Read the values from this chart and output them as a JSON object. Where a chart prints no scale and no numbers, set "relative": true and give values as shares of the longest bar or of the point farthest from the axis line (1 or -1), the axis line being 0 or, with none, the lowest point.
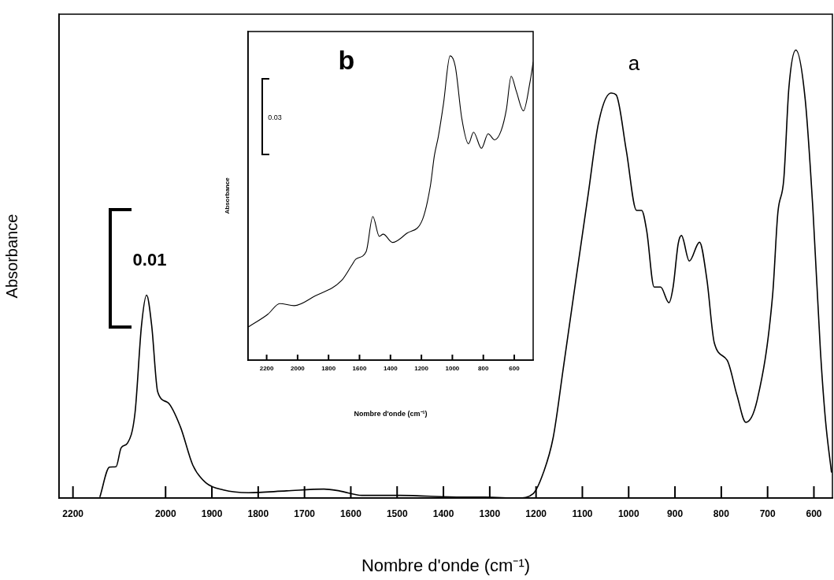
{
  "chart_data": [
    {
      "type": "line",
      "xlabel": "Nombre d'onde (cm⁻¹)",
      "ylabel": "Absorbance",
      "relative": true,
      "color": "#000000",
      "annotations": [
        "0.01",
        "a"
      ],
      "xlim": [
        2230,
        560
      ],
      "xticks": [
        2200,
        2000,
        1900,
        1800,
        1700,
        1600,
        1500,
        1400,
        1300,
        1200,
        1100,
        1000,
        900,
        800,
        700,
        600
      ],
      "x": [
        2142,
        2121,
        2107,
        2096,
        2082,
        2066,
        2052,
        2041,
        2030,
        2017,
        1995,
        1968,
        1941,
        1913,
        1875,
        1821,
        1739,
        1658,
        1625,
        1576,
        1495,
        1359,
        1310,
        1239,
        1206,
        1184,
        1163,
        1141,
        1114,
        1087,
        1065,
        1038,
        1027,
        1005,
        983,
        972,
        961,
        945,
        931,
        913,
        904,
        893,
        886,
        869,
        847,
        831,
        815,
        787,
        766,
        747,
        722,
        689,
        678,
        665,
        654,
        639,
        619,
        602,
        586,
        575,
        562
      ],
      "values": [
        0.002,
        0.069,
        0.07,
        0.112,
        0.123,
        0.19,
        0.385,
        0.453,
        0.385,
        0.237,
        0.213,
        0.159,
        0.073,
        0.034,
        0.018,
        0.012,
        0.016,
        0.02,
        0.016,
        0.006,
        0.006,
        0.002,
        0.002,
        0,
        0.01,
        0.057,
        0.135,
        0.291,
        0.487,
        0.681,
        0.838,
        0.904,
        0.9,
        0.775,
        0.642,
        0.642,
        0.596,
        0.471,
        0.471,
        0.436,
        0.471,
        0.568,
        0.586,
        0.529,
        0.571,
        0.487,
        0.346,
        0.307,
        0.229,
        0.169,
        0.221,
        0.455,
        0.635,
        0.712,
        0.916,
        1,
        0.892,
        0.642,
        0.33,
        0.174,
        0.057
      ]
    },
    {
      "type": "line",
      "xlabel": "Nombre d'onde (cm⁻¹)",
      "ylabel": "Absorbance",
      "relative": true,
      "color": "#000000",
      "annotations": [
        "0.03",
        "b"
      ],
      "xlim": [
        2320,
        478
      ],
      "xticks": [
        2200,
        2000,
        1800,
        1600,
        1400,
        1200,
        1000,
        800,
        600
      ],
      "x": [
        2319,
        2192,
        2115,
        2022,
        1887,
        1717,
        1650,
        1624,
        1557,
        1514,
        1472,
        1447,
        1387,
        1294,
        1193,
        1142,
        1116,
        1091,
        1057,
        1015,
        981,
        939,
        896,
        863,
        812,
        769,
        727,
        685,
        651,
        620,
        587,
        541,
        498,
        478
      ],
      "values": [
        0.109,
        0.151,
        0.186,
        0.179,
        0.211,
        0.261,
        0.312,
        0.332,
        0.357,
        0.472,
        0.407,
        0.414,
        0.387,
        0.417,
        0.462,
        0.573,
        0.673,
        0.734,
        0.844,
        1,
        0.965,
        0.794,
        0.711,
        0.749,
        0.696,
        0.744,
        0.724,
        0.754,
        0.824,
        0.933,
        0.884,
        0.819,
        0.915,
        0.98
      ]
    }
  ]
}
